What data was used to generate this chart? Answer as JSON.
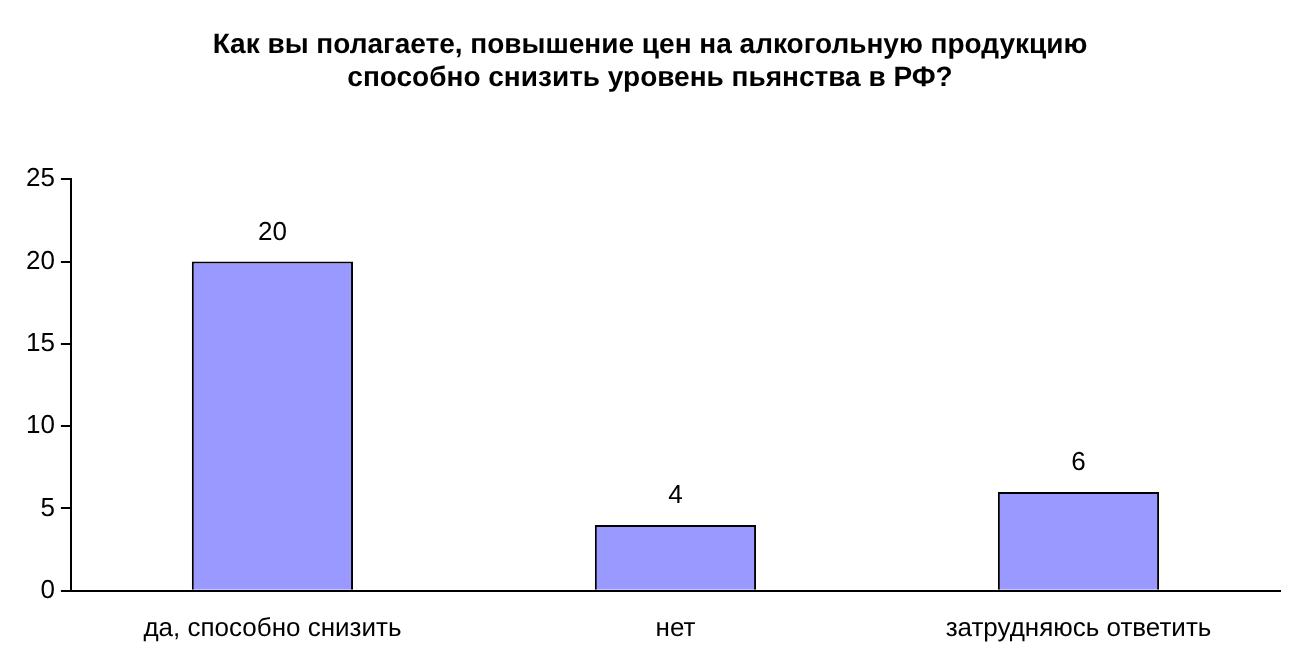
{
  "chart_data": {
    "type": "bar",
    "title": "Как вы полагаете, повышение цен на алкогольную продукцию способно снизить уровень пьянства в РФ?",
    "categories": [
      "да, способно снизить",
      "нет",
      "затрудняюсь ответить"
    ],
    "values": [
      20,
      4,
      6
    ],
    "color": "#9999ff",
    "ylim": [
      0,
      25
    ],
    "yticks": [
      0,
      5,
      10,
      15,
      20,
      25
    ],
    "grid": false,
    "legend": false,
    "data_labels": true
  }
}
